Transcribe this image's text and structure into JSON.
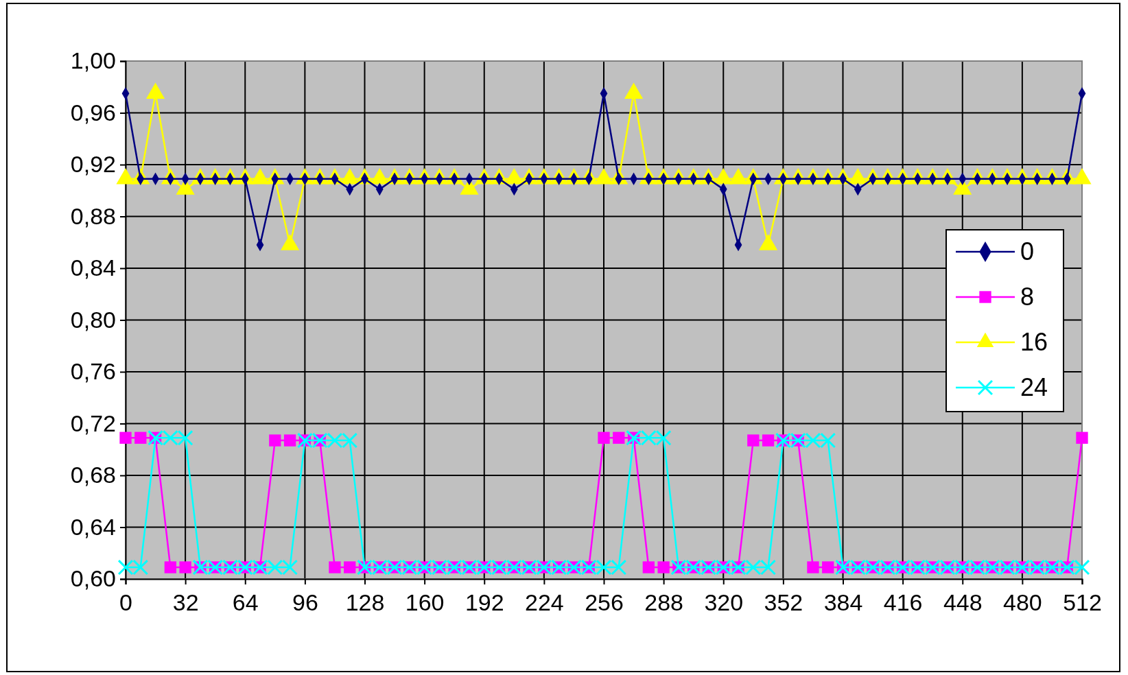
{
  "chart_data": {
    "type": "line",
    "x": [
      0,
      8,
      16,
      24,
      32,
      40,
      48,
      56,
      64,
      72,
      80,
      88,
      96,
      104,
      112,
      120,
      128,
      136,
      144,
      152,
      160,
      168,
      176,
      184,
      192,
      200,
      208,
      216,
      224,
      232,
      240,
      248,
      256,
      264,
      272,
      280,
      288,
      296,
      304,
      312,
      320,
      328,
      336,
      344,
      352,
      360,
      368,
      376,
      384,
      392,
      400,
      408,
      416,
      424,
      432,
      440,
      448,
      456,
      464,
      472,
      480,
      488,
      496,
      504,
      512
    ],
    "series": [
      {
        "name": "0",
        "color": "#000080",
        "marker": "diamond",
        "values": [
          0.975,
          0.909,
          0.909,
          0.909,
          0.909,
          0.909,
          0.909,
          0.909,
          0.909,
          0.858,
          0.909,
          0.909,
          0.909,
          0.909,
          0.909,
          0.901,
          0.909,
          0.901,
          0.909,
          0.909,
          0.909,
          0.909,
          0.909,
          0.909,
          0.909,
          0.909,
          0.901,
          0.909,
          0.909,
          0.909,
          0.909,
          0.909,
          0.975,
          0.909,
          0.909,
          0.909,
          0.909,
          0.909,
          0.909,
          0.909,
          0.901,
          0.858,
          0.909,
          0.909,
          0.909,
          0.909,
          0.909,
          0.909,
          0.909,
          0.901,
          0.909,
          0.909,
          0.909,
          0.909,
          0.909,
          0.909,
          0.909,
          0.909,
          0.909,
          0.909,
          0.909,
          0.909,
          0.909,
          0.909,
          0.975
        ]
      },
      {
        "name": "8",
        "color": "#ff00ff",
        "marker": "square",
        "values": [
          0.709,
          0.709,
          0.709,
          0.609,
          0.609,
          0.609,
          0.609,
          0.609,
          0.609,
          0.609,
          0.707,
          0.707,
          0.707,
          0.707,
          0.609,
          0.609,
          0.609,
          0.609,
          0.609,
          0.609,
          0.609,
          0.609,
          0.609,
          0.609,
          0.609,
          0.609,
          0.609,
          0.609,
          0.609,
          0.609,
          0.609,
          0.609,
          0.709,
          0.709,
          0.709,
          0.609,
          0.609,
          0.609,
          0.609,
          0.609,
          0.609,
          0.609,
          0.707,
          0.707,
          0.707,
          0.707,
          0.609,
          0.609,
          0.609,
          0.609,
          0.609,
          0.609,
          0.609,
          0.609,
          0.609,
          0.609,
          0.609,
          0.609,
          0.609,
          0.609,
          0.609,
          0.609,
          0.609,
          0.609,
          0.709
        ]
      },
      {
        "name": "16",
        "color": "#ffff00",
        "marker": "triangle",
        "values": [
          0.909,
          0.909,
          0.975,
          0.909,
          0.901,
          0.909,
          0.909,
          0.909,
          0.909,
          0.909,
          0.909,
          0.858,
          0.909,
          0.909,
          0.909,
          0.909,
          0.909,
          0.909,
          0.909,
          0.909,
          0.909,
          0.909,
          0.909,
          0.901,
          0.909,
          0.909,
          0.909,
          0.909,
          0.909,
          0.909,
          0.909,
          0.909,
          0.909,
          0.909,
          0.975,
          0.909,
          0.909,
          0.909,
          0.909,
          0.909,
          0.909,
          0.909,
          0.909,
          0.858,
          0.909,
          0.909,
          0.909,
          0.909,
          0.909,
          0.909,
          0.909,
          0.909,
          0.909,
          0.909,
          0.909,
          0.909,
          0.901,
          0.909,
          0.909,
          0.909,
          0.909,
          0.909,
          0.909,
          0.909,
          0.909
        ]
      },
      {
        "name": "24",
        "color": "#00ffff",
        "marker": "cross",
        "values": [
          0.609,
          0.609,
          0.709,
          0.709,
          0.709,
          0.609,
          0.609,
          0.609,
          0.609,
          0.609,
          0.609,
          0.609,
          0.707,
          0.707,
          0.707,
          0.707,
          0.609,
          0.609,
          0.609,
          0.609,
          0.609,
          0.609,
          0.609,
          0.609,
          0.609,
          0.609,
          0.609,
          0.609,
          0.609,
          0.609,
          0.609,
          0.609,
          0.609,
          0.609,
          0.709,
          0.709,
          0.709,
          0.609,
          0.609,
          0.609,
          0.609,
          0.609,
          0.609,
          0.609,
          0.707,
          0.707,
          0.707,
          0.707,
          0.609,
          0.609,
          0.609,
          0.609,
          0.609,
          0.609,
          0.609,
          0.609,
          0.609,
          0.609,
          0.609,
          0.609,
          0.609,
          0.609,
          0.609,
          0.609,
          0.609
        ]
      }
    ],
    "xlim": [
      0,
      512
    ],
    "xticks": [
      0,
      32,
      64,
      96,
      128,
      160,
      192,
      224,
      256,
      288,
      320,
      352,
      384,
      416,
      448,
      480,
      512
    ],
    "ylim": [
      0.6,
      1.0
    ],
    "yticks": [
      {
        "value": 0.6,
        "label": "0,60"
      },
      {
        "value": 0.64,
        "label": "0,64"
      },
      {
        "value": 0.68,
        "label": "0,68"
      },
      {
        "value": 0.72,
        "label": "0,72"
      },
      {
        "value": 0.76,
        "label": "0,76"
      },
      {
        "value": 0.8,
        "label": "0,80"
      },
      {
        "value": 0.84,
        "label": "0,84"
      },
      {
        "value": 0.88,
        "label": "0,88"
      },
      {
        "value": 0.92,
        "label": "0,92"
      },
      {
        "value": 0.96,
        "label": "0,96"
      },
      {
        "value": 1.0,
        "label": "1,00"
      }
    ],
    "grid": true,
    "legend": "right",
    "line_style": "solid"
  }
}
